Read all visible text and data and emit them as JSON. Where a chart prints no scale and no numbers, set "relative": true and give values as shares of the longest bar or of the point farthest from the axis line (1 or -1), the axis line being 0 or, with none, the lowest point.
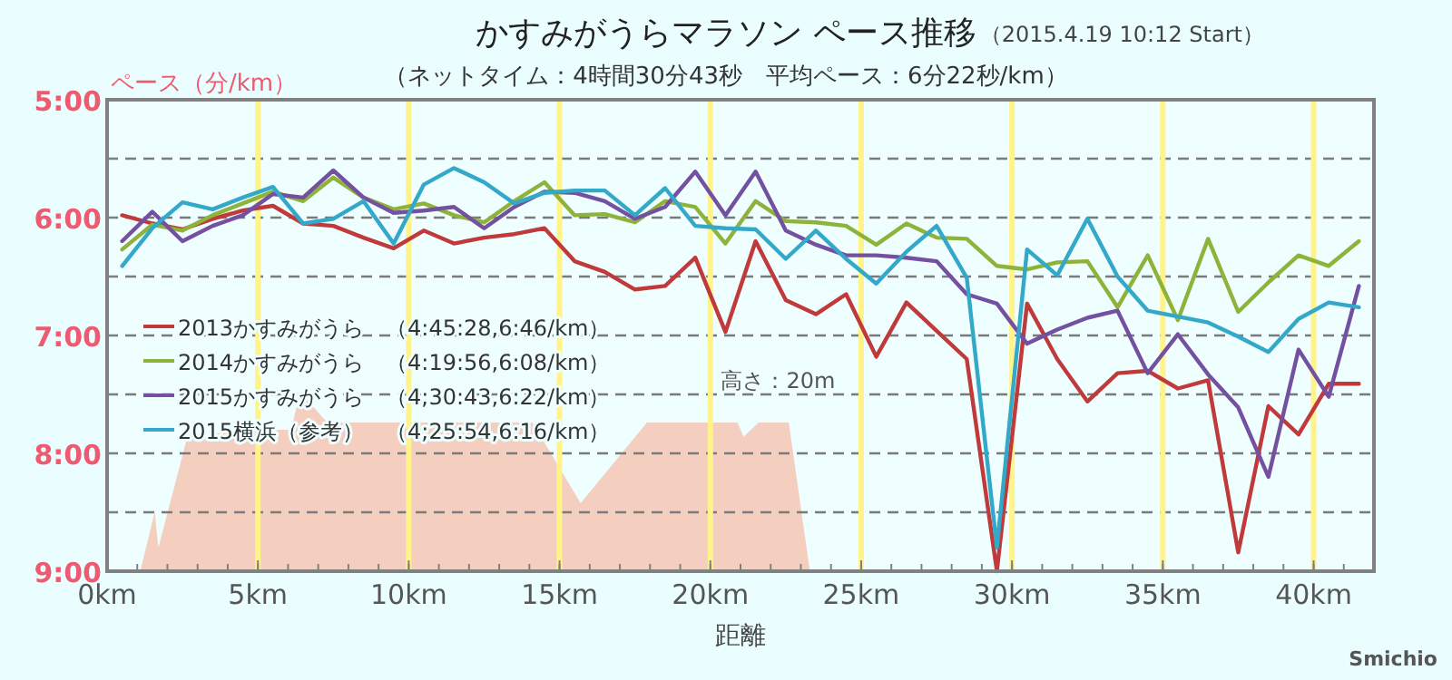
{
  "chart_data": [
    {
      "type": "line",
      "title": "かすみがうらマラソン ペース推移",
      "subtitle": "（ネットタイム：4時間30分43秒　平均ペース：6分22秒/km）",
      "xlabel": "距離",
      "ylabel": "ペース（分/km）",
      "annotations": [
        "（2015.4.19 10:12 Start）",
        "Smichio"
      ],
      "xlim": [
        0,
        42
      ],
      "xticks": [
        {
          "value": 0,
          "label": "0km"
        },
        {
          "value": 5,
          "label": "5km"
        },
        {
          "value": 10,
          "label": "10km"
        },
        {
          "value": 15,
          "label": "15km"
        },
        {
          "value": 20,
          "label": "20km"
        },
        {
          "value": 25,
          "label": "25km"
        },
        {
          "value": 30,
          "label": "30km"
        },
        {
          "value": 35,
          "label": "35km"
        },
        {
          "value": 40,
          "label": "40km"
        }
      ],
      "ylim": [
        9,
        5
      ],
      "yticks": [
        {
          "value": 5,
          "label": "5:00"
        },
        {
          "value": 5.5,
          "label": null
        },
        {
          "value": 6,
          "label": "6:00"
        },
        {
          "value": 6.5,
          "label": null
        },
        {
          "value": 7,
          "label": "7:00"
        },
        {
          "value": 7.5,
          "label": null
        },
        {
          "value": 8,
          "label": "8:00"
        },
        {
          "value": 8.5,
          "label": null
        },
        {
          "value": 9,
          "label": "9:00"
        }
      ],
      "grid": "y",
      "legend": "left",
      "line_style": "solid",
      "marker": "none",
      "ref_lines": [
        {
          "axis": "x",
          "value": 5,
          "color": "#fff38a"
        },
        {
          "axis": "x",
          "value": 10,
          "color": "#fff38a"
        },
        {
          "axis": "x",
          "value": 15,
          "color": "#fff38a"
        },
        {
          "axis": "x",
          "value": 20,
          "color": "#fff38a"
        },
        {
          "axis": "x",
          "value": 25,
          "color": "#fff38a"
        },
        {
          "axis": "x",
          "value": 30,
          "color": "#fff38a"
        },
        {
          "axis": "x",
          "value": 35,
          "color": "#fff38a"
        },
        {
          "axis": "x",
          "value": 40,
          "color": "#fff38a"
        }
      ],
      "x": [
        0.5,
        1.5,
        2.5,
        3.5,
        4.5,
        5.5,
        6.5,
        7.5,
        8.5,
        9.5,
        10.5,
        11.5,
        12.5,
        13.5,
        14.5,
        15.5,
        16.5,
        17.5,
        18.5,
        19.5,
        20.5,
        21.5,
        22.5,
        23.5,
        24.5,
        25.5,
        26.5,
        27.5,
        28.5,
        29.5,
        30.5,
        31.5,
        32.5,
        33.5,
        34.5,
        35.5,
        36.5,
        37.5,
        38.5,
        39.5,
        40.5,
        41.5
      ],
      "series": [
        {
          "name": "2013かすみがうら　（4:45:28,6:46/km）",
          "color": "#c0393b",
          "values": [
            5.98,
            6.05,
            6.1,
            6.01,
            5.94,
            5.9,
            6.05,
            6.07,
            6.17,
            6.26,
            6.11,
            6.22,
            6.17,
            6.14,
            6.09,
            6.37,
            6.46,
            6.61,
            6.58,
            6.34,
            6.97,
            6.2,
            6.7,
            6.82,
            6.65,
            7.18,
            6.72,
            6.96,
            7.2,
            9.0,
            6.73,
            7.2,
            7.56,
            7.32,
            7.3,
            7.45,
            7.38,
            8.84,
            7.6,
            7.84,
            7.41,
            7.41
          ]
        },
        {
          "name": "2014かすみがうら　（4:19:56,6:08/km）",
          "color": "#8db33a",
          "values": [
            6.27,
            6.06,
            6.11,
            5.98,
            5.88,
            5.78,
            5.86,
            5.66,
            5.83,
            5.93,
            5.88,
            5.98,
            6.04,
            5.86,
            5.7,
            5.98,
            5.97,
            6.04,
            5.86,
            5.91,
            6.22,
            5.86,
            6.03,
            6.04,
            6.07,
            6.23,
            6.05,
            6.17,
            6.18,
            6.41,
            6.44,
            6.38,
            6.37,
            6.76,
            6.32,
            6.87,
            6.18,
            6.8,
            6.55,
            6.32,
            6.41,
            6.2
          ]
        },
        {
          "name": "2015かすみがうら　（4;30:43,6:22/km）",
          "color": "#7350a0",
          "values": [
            6.2,
            5.95,
            6.2,
            6.07,
            5.98,
            5.8,
            5.83,
            5.6,
            5.83,
            5.96,
            5.94,
            5.91,
            6.09,
            5.91,
            5.78,
            5.79,
            5.86,
            6.01,
            5.91,
            5.61,
            5.98,
            5.61,
            6.11,
            6.23,
            6.32,
            6.32,
            6.34,
            6.37,
            6.65,
            6.73,
            7.07,
            6.95,
            6.85,
            6.79,
            7.32,
            6.99,
            7.33,
            7.61,
            8.2,
            7.12,
            7.52,
            6.58
          ]
        },
        {
          "name": "2015横浜（参考）　（4;25:54,6:16/km）",
          "color": "#33a8c8",
          "values": [
            6.41,
            6.09,
            5.87,
            5.93,
            5.83,
            5.74,
            6.05,
            6.01,
            5.86,
            6.22,
            5.72,
            5.58,
            5.7,
            5.88,
            5.79,
            5.77,
            5.77,
            5.98,
            5.75,
            6.07,
            6.09,
            6.1,
            6.35,
            6.11,
            6.35,
            6.56,
            6.29,
            6.07,
            6.51,
            8.8,
            6.27,
            6.49,
            6.01,
            6.5,
            6.79,
            6.84,
            6.89,
            7.01,
            7.14,
            6.86,
            6.72,
            6.76
          ]
        }
      ]
    },
    {
      "type": "area",
      "relative": true,
      "annotations": [
        "高さ：20m"
      ],
      "xlim": [
        0,
        42
      ],
      "color": "#f4cfc0",
      "x": [
        1.1,
        1.58,
        1.7,
        2.66,
        4.7,
        6.1,
        6.4,
        7.3,
        14.1,
        15.7,
        17.9,
        20.9,
        21.1,
        21.6,
        22.6,
        23.3
      ],
      "values": [
        0,
        0.33,
        0.13,
        0.75,
        0.79,
        0.79,
        1,
        0.83,
        0.83,
        0.38,
        0.83,
        0.83,
        0.75,
        0.83,
        0.83,
        0
      ]
    }
  ]
}
